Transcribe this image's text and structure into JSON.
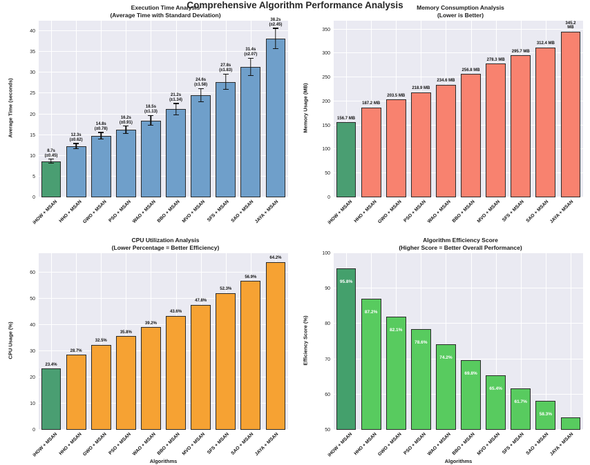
{
  "suptitle": "Comprehensive Algorithm Performance Analysis",
  "algorithms": [
    "iHOW + MSAN",
    "HHO + MSAN",
    "GWO + MSAN",
    "PSO + MSAN",
    "WAO + MSAN",
    "BBO + MSAN",
    "MVO + MSAN",
    "SFS + MSAN",
    "SAO + MSAN",
    "JAYA + MSAN"
  ],
  "chart_data": [
    {
      "type": "bar",
      "title": "Execution Time Analysis",
      "subtitle": "(Average Time with Standard Deviation)",
      "ylabel": "Average Time (seconds)",
      "categories": [
        "iHOW + MSAN",
        "HHO + MSAN",
        "GWO + MSAN",
        "PSO + MSAN",
        "WAO + MSAN",
        "BBO + MSAN",
        "MVO + MSAN",
        "SFS + MSAN",
        "SAO + MSAN",
        "JAYA + MSAN"
      ],
      "values": [
        8.7,
        12.3,
        14.8,
        16.2,
        18.5,
        21.2,
        24.6,
        27.8,
        31.4,
        38.2
      ],
      "errors": [
        0.45,
        0.62,
        0.78,
        0.91,
        1.13,
        1.34,
        1.58,
        1.83,
        2.07,
        2.45
      ],
      "value_labels": [
        "8.7s\n(±0.45)",
        "12.3s\n(±0.62)",
        "14.8s\n(±0.78)",
        "16.2s\n(±0.91)",
        "18.5s\n(±1.13)",
        "21.2s\n(±1.34)",
        "24.6s\n(±1.58)",
        "27.8s\n(±1.83)",
        "31.4s\n(±2.07)",
        "38.2s\n(±2.45)"
      ],
      "ylim": [
        0,
        42.5
      ],
      "yticks": [
        0,
        5,
        10,
        15,
        20,
        25,
        30,
        35,
        40
      ],
      "grid": true,
      "label_position": "above",
      "bar_color": "#6f9fca",
      "highlight_color": "#4a9e72",
      "highlight_index": 0
    },
    {
      "type": "bar",
      "title": "Memory Consumption Analysis",
      "subtitle": "(Lower is Better)",
      "ylabel": "Memory Usage (MB)",
      "categories": [
        "iHOW + MSAN",
        "HHO + MSAN",
        "GWO + MSAN",
        "PSO + MSAN",
        "WAO + MSAN",
        "BBO + MSAN",
        "MVO + MSAN",
        "SFS + MSAN",
        "SAO + MSAN",
        "JAYA + MSAN"
      ],
      "values": [
        156.7,
        187.2,
        203.5,
        218.9,
        234.6,
        256.8,
        278.3,
        295.7,
        312.4,
        345.2
      ],
      "value_labels": [
        "156.7 MB",
        "187.2 MB",
        "203.5 MB",
        "218.9 MB",
        "234.6 MB",
        "256.8 MB",
        "278.3 MB",
        "295.7 MB",
        "312.4 MB",
        "345.2 MB"
      ],
      "ylim": [
        0,
        368
      ],
      "yticks": [
        0,
        50,
        100,
        150,
        200,
        250,
        300,
        350
      ],
      "grid": true,
      "label_position": "above",
      "bar_color": "#f8826f",
      "highlight_color": "#4a9e72",
      "highlight_index": 0
    },
    {
      "type": "bar",
      "title": "CPU Utilization Analysis",
      "subtitle": "(Lower Percentage = Better Efficiency)",
      "ylabel": "CPU Usage (%)",
      "xlabel": "Algorithms",
      "categories": [
        "iHOW + MSAN",
        "HHO + MSAN",
        "GWO + MSAN",
        "PSO + MSAN",
        "WAO + MSAN",
        "BBO + MSAN",
        "MVO + MSAN",
        "SFS + MSAN",
        "SAO + MSAN",
        "JAYA + MSAN"
      ],
      "values": [
        23.4,
        28.7,
        32.5,
        35.8,
        39.2,
        43.6,
        47.8,
        52.3,
        56.9,
        64.2
      ],
      "value_labels": [
        "23.4%",
        "28.7%",
        "32.5%",
        "35.8%",
        "39.2%",
        "43.6%",
        "47.8%",
        "52.3%",
        "56.9%",
        "64.2%"
      ],
      "ylim": [
        0,
        67.5
      ],
      "yticks": [
        0,
        10,
        20,
        30,
        40,
        50,
        60
      ],
      "grid": true,
      "label_position": "above",
      "bar_color": "#f6a233",
      "highlight_color": "#4a9e72",
      "highlight_index": 0
    },
    {
      "type": "bar",
      "title": "Algorithm Efficiency Score",
      "subtitle": "(Higher Score = Better Overall Performance)",
      "ylabel": "Efficiency Score (%)",
      "xlabel": "Algorithms",
      "categories": [
        "iHOW + MSAN",
        "HHO + MSAN",
        "GWO + MSAN",
        "PSO + MSAN",
        "WAO + MSAN",
        "BBO + MSAN",
        "MVO + MSAN",
        "SFS + MSAN",
        "SAO + MSAN",
        "JAYA + MSAN"
      ],
      "values": [
        95.8,
        87.2,
        82.1,
        78.6,
        74.2,
        69.8,
        65.4,
        61.7,
        58.3,
        53.5
      ],
      "value_labels": [
        "95.8%",
        "87.2%",
        "82.1%",
        "78.6%",
        "74.2%",
        "69.8%",
        "65.4%",
        "61.7%",
        "58.3%",
        ""
      ],
      "ylim": [
        50,
        100
      ],
      "yticks": [
        50,
        60,
        70,
        80,
        90,
        100
      ],
      "grid": true,
      "label_position": "inside",
      "bar_color": "#58cb5f",
      "highlight_color": "#44a06c",
      "highlight_index": 0
    }
  ],
  "colors": {
    "plot_background": "#eaeaf2",
    "grid_line": "#ffffff",
    "bar_edge": "#2a2a2a",
    "execution_bar": "#6f9fca",
    "memory_bar": "#f8826f",
    "cpu_bar": "#f6a233",
    "efficiency_bar": "#58cb5f",
    "highlight_green": "#4a9e72"
  }
}
